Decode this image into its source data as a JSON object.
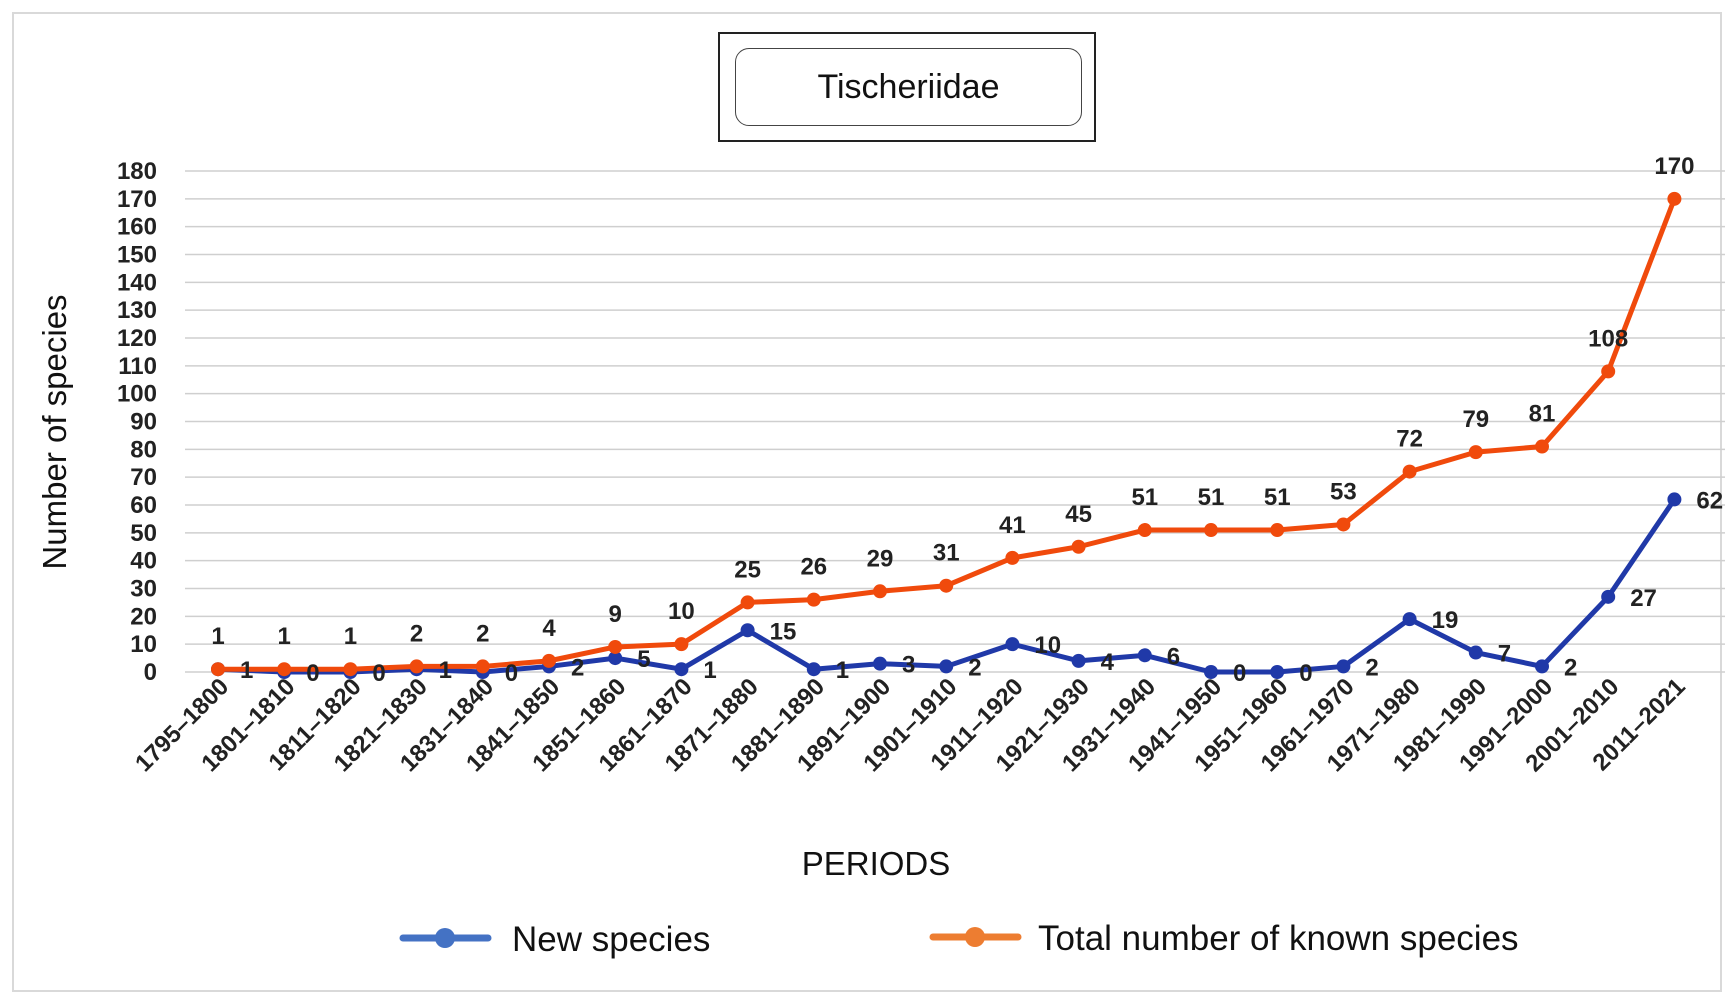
{
  "chart_data": {
    "type": "line",
    "title": "Tischeriidae",
    "xlabel": "PERIODS",
    "ylabel": "Number of species",
    "ylim": [
      0,
      180
    ],
    "ytick_step": 10,
    "grid": true,
    "legend_position": "bottom",
    "categories": [
      "1795–1800",
      "1801–1810",
      "1811–1820",
      "1821–1830",
      "1831–1840",
      "1841–1850",
      "1851–1860",
      "1861–1870",
      "1871–1880",
      "1881–1890",
      "1891–1900",
      "1901–1910",
      "1911–1920",
      "1921–1930",
      "1931–1940",
      "1941–1950",
      "1951–1960",
      "1961–1970",
      "1971–1980",
      "1981–1990",
      "1991–2000",
      "2001–2010",
      "2011–2021"
    ],
    "series": [
      {
        "name": "New species",
        "color": "#2039a8",
        "legend_marker_color": "#4472c4",
        "values": [
          1,
          0,
          0,
          1,
          0,
          2,
          5,
          1,
          15,
          1,
          3,
          2,
          10,
          4,
          6,
          0,
          0,
          2,
          19,
          7,
          2,
          27,
          62
        ]
      },
      {
        "name": "Total number of known species",
        "color": "#f04a0c",
        "legend_marker_color": "#ed7d31",
        "values": [
          1,
          1,
          1,
          2,
          2,
          4,
          9,
          10,
          25,
          26,
          29,
          31,
          41,
          45,
          51,
          51,
          51,
          53,
          72,
          79,
          81,
          108,
          170
        ]
      }
    ]
  }
}
